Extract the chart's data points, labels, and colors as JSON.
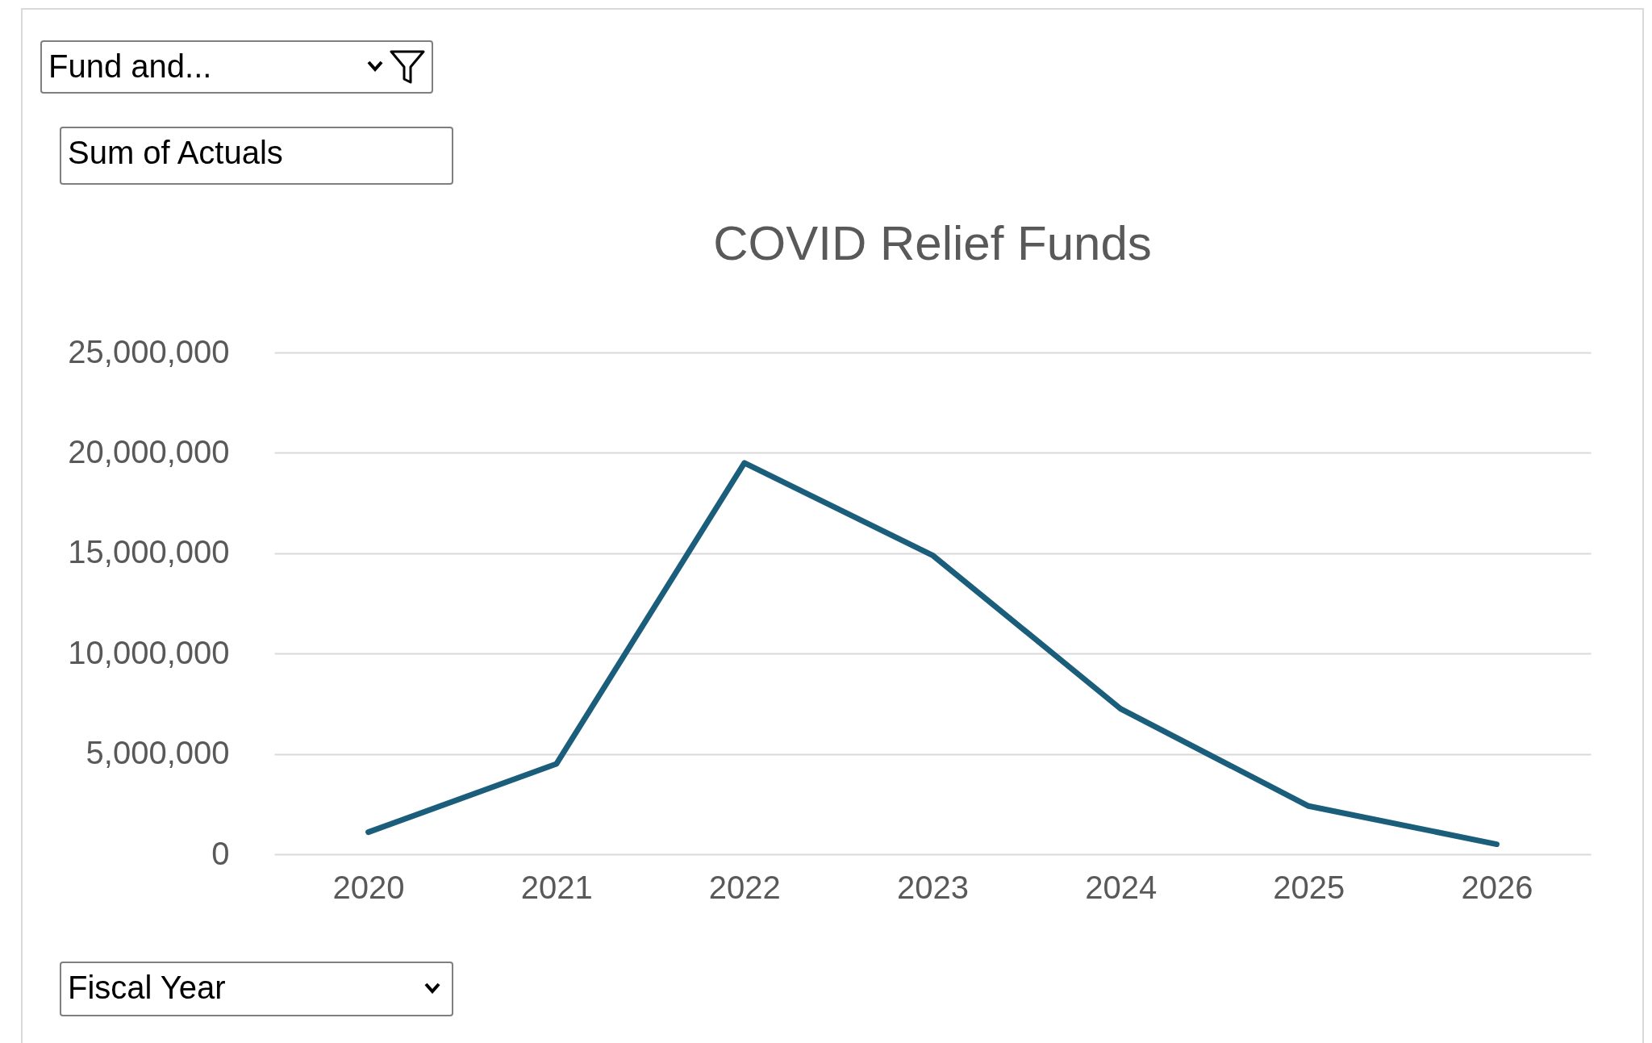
{
  "chart_data": {
    "type": "line",
    "title": "COVID Relief Funds",
    "xlabel": "Fiscal Year",
    "annotations": [
      "Fund and...",
      "Sum of Actuals"
    ],
    "categories": [
      "2020",
      "2021",
      "2022",
      "2023",
      "2024",
      "2025",
      "2026"
    ],
    "series": [
      {
        "color": "#1b5e7b",
        "values": [
          1100000,
          4500000,
          19500000,
          14900000,
          7250000,
          2400000,
          500000
        ]
      }
    ],
    "ylim": [
      0,
      25000000
    ],
    "yticks": [
      0,
      {
        "value": 5000000,
        "label": "5,000,000"
      },
      {
        "value": 10000000,
        "label": "10,000,000"
      },
      {
        "value": 15000000,
        "label": "15,000,000"
      },
      {
        "value": 20000000,
        "label": "20,000,000"
      },
      {
        "value": 25000000,
        "label": "25,000,000"
      }
    ],
    "grid": "y",
    "legend": false,
    "marker": "none",
    "line_style": "solid"
  }
}
